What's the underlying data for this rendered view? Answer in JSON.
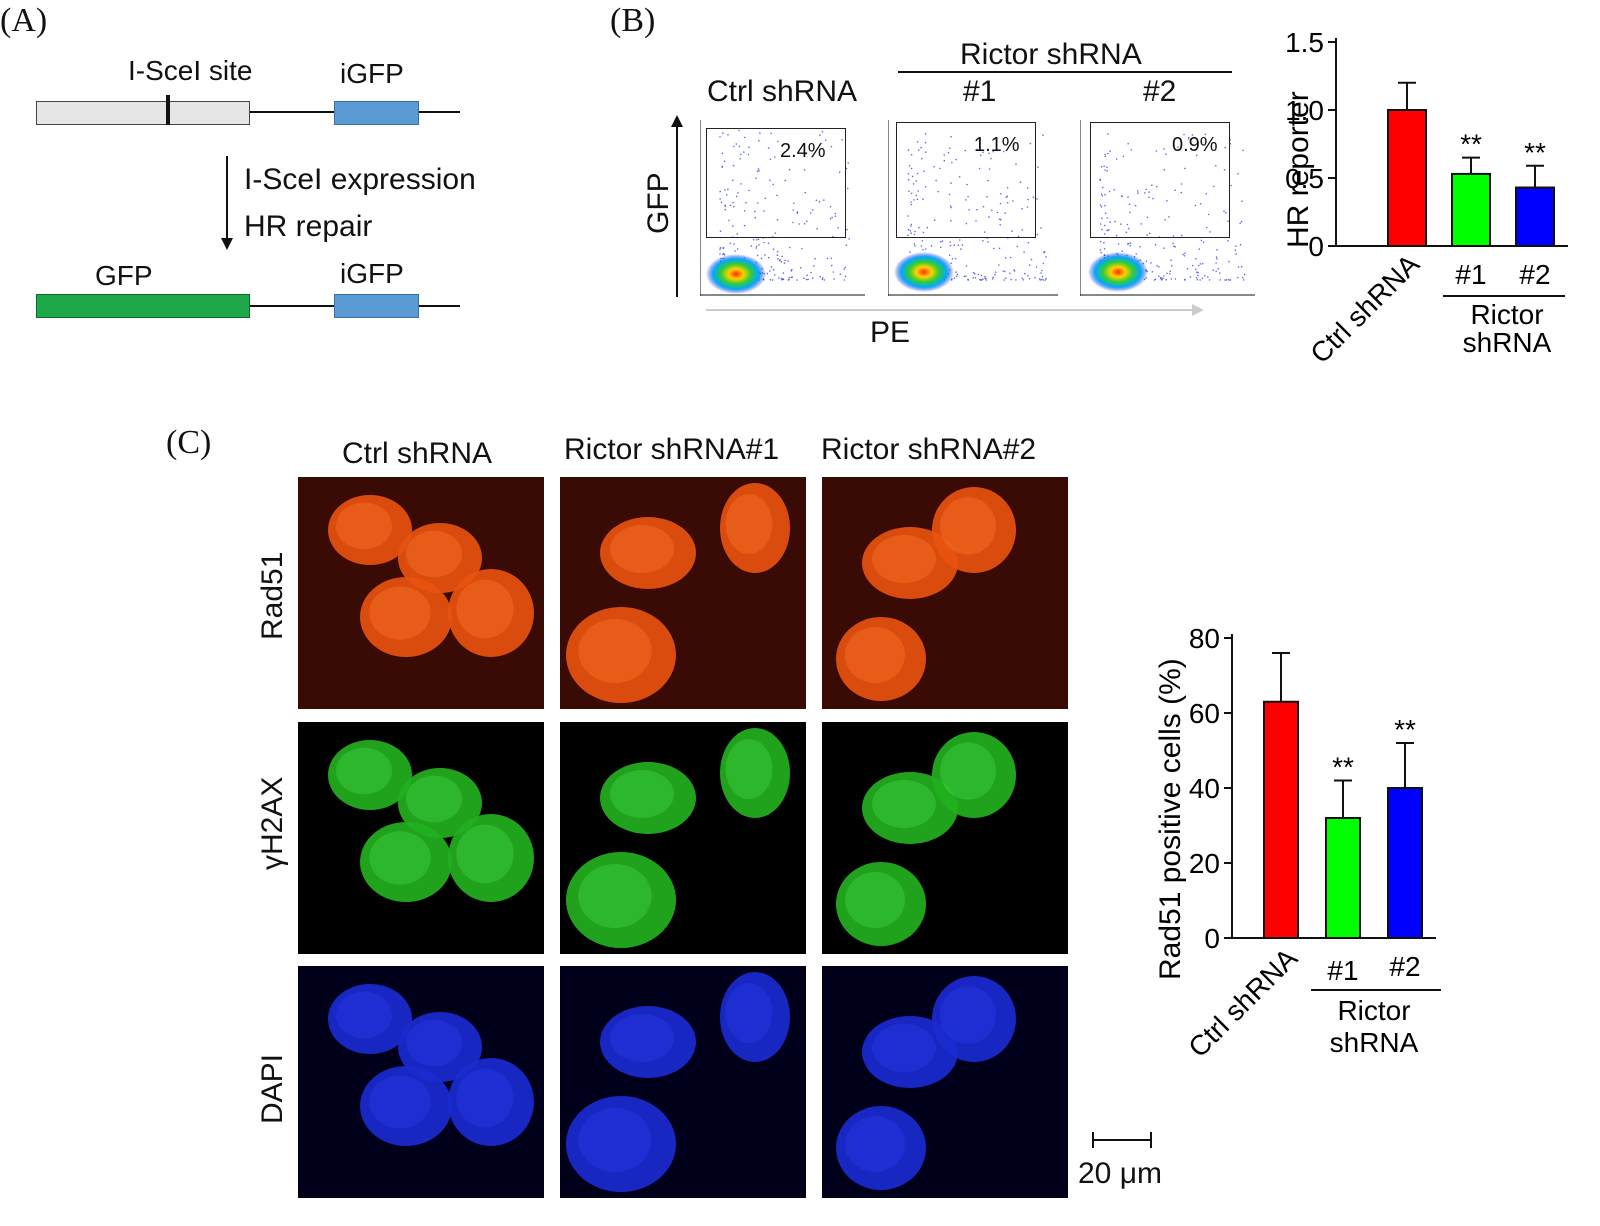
{
  "panelA": {
    "label": "(A)",
    "isce_site": "I-SceI site",
    "igfp_top": "iGFP",
    "expression": "I-SceI expression",
    "hr_repair": "HR repair",
    "gfp": "GFP",
    "igfp_bottom": "iGFP",
    "colors": {
      "gray_box": "#e6e6e6",
      "igfp_box": "#5b9bd5",
      "gfp_box": "#1fa84a"
    }
  },
  "panelB": {
    "label": "(B)",
    "ctrl": "Ctrl shRNA",
    "rictor_header": "Rictor shRNA",
    "sub1": "#1",
    "sub2": "#2",
    "gfp_axis": "GFP",
    "pe_axis": "PE",
    "percentages": [
      "2.4%",
      "1.1%",
      "0.9%"
    ]
  },
  "panelC": {
    "label": "(C)",
    "columns": [
      "Ctrl shRNA",
      "Rictor shRNA#1",
      "Rictor shRNA#2"
    ],
    "rows": [
      "Rad51",
      "γH2AX",
      "DAPI"
    ],
    "scale_bar": "20 μm"
  },
  "chart_data": [
    {
      "type": "bar",
      "ylabel": "HR reporter",
      "categories": [
        "Ctrl shRNA",
        "#1",
        "#2"
      ],
      "group_label": "Rictor shRNA",
      "values": [
        1.0,
        0.53,
        0.43
      ],
      "errors": [
        0.2,
        0.12,
        0.16
      ],
      "significance": [
        "",
        "**",
        "**"
      ],
      "colors": [
        "#ff0000",
        "#00ff00",
        "#0000ff"
      ],
      "ylim": [
        0,
        1.5
      ],
      "yticks": [
        "0",
        "0.5",
        "1.0",
        "1.5"
      ]
    },
    {
      "type": "bar",
      "ylabel": "Rad51 positive cells (%)",
      "categories": [
        "Ctrl shRNA",
        "#1",
        "#2"
      ],
      "group_label": "Rictor shRNA",
      "values": [
        63,
        32,
        40
      ],
      "errors": [
        13,
        10,
        12
      ],
      "significance": [
        "",
        "**",
        "**"
      ],
      "colors": [
        "#ff0000",
        "#00ff00",
        "#0000ff"
      ],
      "ylim": [
        0,
        80
      ],
      "yticks": [
        "0",
        "20",
        "40",
        "60",
        "80"
      ]
    }
  ]
}
